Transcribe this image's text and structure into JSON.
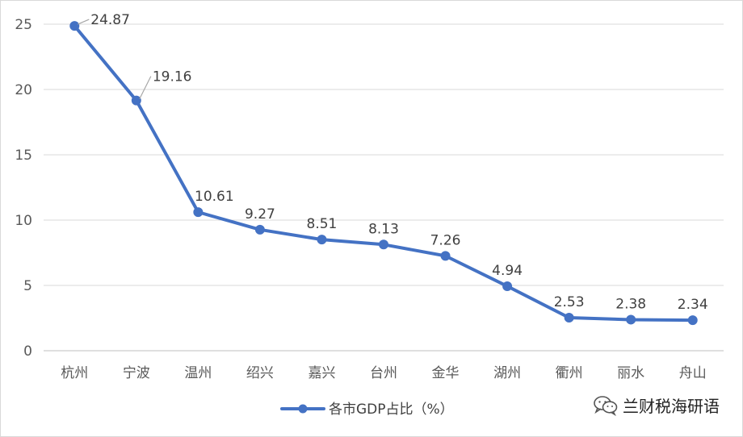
{
  "chart_data": {
    "type": "line",
    "categories": [
      "杭州",
      "宁波",
      "温州",
      "绍兴",
      "嘉兴",
      "台州",
      "金华",
      "湖州",
      "衢州",
      "丽水",
      "舟山"
    ],
    "series": [
      {
        "name": "各市GDP占比（%）",
        "values": [
          24.87,
          19.16,
          10.61,
          9.27,
          8.51,
          8.13,
          7.26,
          4.94,
          2.53,
          2.38,
          2.34
        ],
        "labels": [
          "24.87",
          "19.16",
          "10.61",
          "9.27",
          "8.51",
          "8.13",
          "7.26",
          "4.94",
          "2.53",
          "2.38",
          "2.34"
        ]
      }
    ],
    "yticks": [
      "0",
      "5",
      "10",
      "15",
      "20",
      "25"
    ],
    "ylim": [
      0,
      25
    ],
    "grid": true,
    "legend": "bottom-center",
    "color": "#4472C4"
  },
  "watermark": {
    "text": "兰财税海研语",
    "icon": "wechat-icon"
  }
}
